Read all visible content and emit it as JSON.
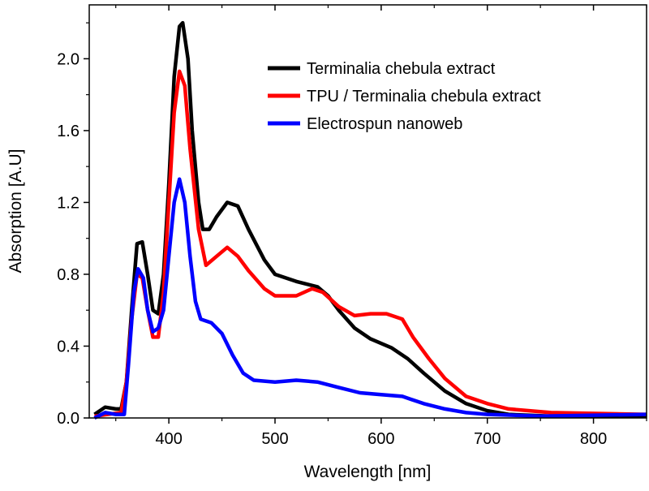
{
  "chart_data": {
    "type": "line",
    "title": "",
    "xlabel": "Wavelength [nm]",
    "ylabel": "Absorption [A.U]",
    "xlim": [
      325,
      850
    ],
    "ylim": [
      0,
      2.3
    ],
    "xticks": [
      400,
      500,
      600,
      700,
      800
    ],
    "xtick_labels": [
      "400",
      "500",
      "600",
      "700",
      "800"
    ],
    "yticks": [
      0.0,
      0.4,
      0.8,
      1.2,
      1.6,
      2.0
    ],
    "ytick_labels": [
      "0.0",
      "0.4",
      "0.8",
      "1.2",
      "1.6",
      "2.0"
    ],
    "grid": false,
    "legend_position": "top-right",
    "series": [
      {
        "name": "Terminalia chebula extract",
        "color": "#000000",
        "x": [
          330,
          340,
          350,
          355,
          360,
          365,
          370,
          375,
          380,
          385,
          390,
          395,
          400,
          405,
          410,
          413,
          418,
          422,
          428,
          432,
          438,
          445,
          455,
          465,
          475,
          490,
          500,
          520,
          540,
          550,
          560,
          575,
          590,
          610,
          625,
          640,
          660,
          680,
          700,
          720,
          760,
          850
        ],
        "y": [
          0.02,
          0.06,
          0.05,
          0.05,
          0.2,
          0.6,
          0.97,
          0.98,
          0.8,
          0.6,
          0.58,
          0.8,
          1.3,
          1.9,
          2.18,
          2.2,
          2.0,
          1.6,
          1.2,
          1.05,
          1.05,
          1.12,
          1.2,
          1.18,
          1.05,
          0.88,
          0.8,
          0.76,
          0.73,
          0.68,
          0.6,
          0.5,
          0.44,
          0.39,
          0.33,
          0.25,
          0.15,
          0.08,
          0.04,
          0.02,
          0.01,
          0.01
        ]
      },
      {
        "name": "TPU / Terminalia chebula extract",
        "color": "#ff0000",
        "x": [
          330,
          355,
          360,
          365,
          370,
          375,
          380,
          385,
          390,
          395,
          400,
          405,
          410,
          415,
          420,
          428,
          435,
          445,
          455,
          465,
          475,
          490,
          500,
          520,
          535,
          545,
          560,
          575,
          590,
          605,
          620,
          630,
          645,
          660,
          680,
          700,
          720,
          760,
          850
        ],
        "y": [
          0.01,
          0.03,
          0.2,
          0.55,
          0.8,
          0.78,
          0.6,
          0.45,
          0.45,
          0.7,
          1.2,
          1.7,
          1.93,
          1.85,
          1.5,
          1.05,
          0.85,
          0.9,
          0.95,
          0.9,
          0.82,
          0.72,
          0.68,
          0.68,
          0.72,
          0.7,
          0.62,
          0.57,
          0.58,
          0.58,
          0.55,
          0.45,
          0.33,
          0.22,
          0.12,
          0.08,
          0.05,
          0.03,
          0.02
        ]
      },
      {
        "name": "Electrospun nanoweb",
        "color": "#0000ff",
        "x": [
          330,
          340,
          350,
          358,
          362,
          367,
          371,
          376,
          380,
          385,
          390,
          395,
          400,
          405,
          410,
          415,
          420,
          425,
          430,
          440,
          450,
          460,
          470,
          480,
          500,
          520,
          540,
          560,
          580,
          600,
          620,
          640,
          660,
          680,
          700,
          750,
          850
        ],
        "y": [
          0.0,
          0.03,
          0.02,
          0.02,
          0.3,
          0.7,
          0.83,
          0.78,
          0.6,
          0.48,
          0.5,
          0.6,
          0.9,
          1.2,
          1.33,
          1.2,
          0.9,
          0.65,
          0.55,
          0.53,
          0.47,
          0.35,
          0.25,
          0.21,
          0.2,
          0.21,
          0.2,
          0.17,
          0.14,
          0.13,
          0.12,
          0.08,
          0.05,
          0.03,
          0.02,
          0.01,
          0.02
        ]
      }
    ]
  }
}
